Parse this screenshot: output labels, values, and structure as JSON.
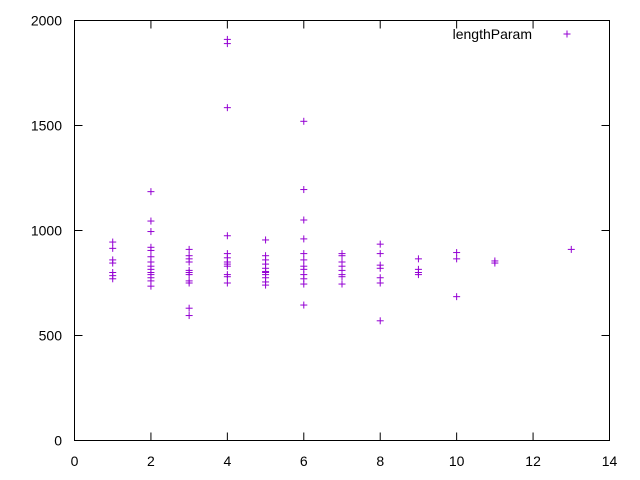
{
  "chart_data": {
    "type": "scatter",
    "title": "",
    "xlabel": "",
    "ylabel": "",
    "xlim": [
      0,
      14
    ],
    "ylim": [
      0,
      2000
    ],
    "xticks": [
      0,
      2,
      4,
      6,
      8,
      10,
      12,
      14
    ],
    "yticks": [
      0,
      500,
      1000,
      1500,
      2000
    ],
    "grid": false,
    "legend_position": "top-right",
    "series": [
      {
        "name": "lengthParam",
        "color": "#9400d3",
        "marker": "plus",
        "points": [
          [
            1,
            945
          ],
          [
            1,
            915
          ],
          [
            1,
            860
          ],
          [
            1,
            845
          ],
          [
            1,
            800
          ],
          [
            1,
            785
          ],
          [
            1,
            770
          ],
          [
            2,
            1185
          ],
          [
            2,
            1045
          ],
          [
            2,
            995
          ],
          [
            2,
            920
          ],
          [
            2,
            905
          ],
          [
            2,
            875
          ],
          [
            2,
            850
          ],
          [
            2,
            830
          ],
          [
            2,
            815
          ],
          [
            2,
            800
          ],
          [
            2,
            790
          ],
          [
            2,
            775
          ],
          [
            2,
            760
          ],
          [
            2,
            735
          ],
          [
            3,
            910
          ],
          [
            3,
            880
          ],
          [
            3,
            865
          ],
          [
            3,
            850
          ],
          [
            3,
            810
          ],
          [
            3,
            800
          ],
          [
            3,
            790
          ],
          [
            3,
            760
          ],
          [
            3,
            750
          ],
          [
            3,
            630
          ],
          [
            3,
            595
          ],
          [
            4,
            1910
          ],
          [
            4,
            1890
          ],
          [
            4,
            1585
          ],
          [
            4,
            975
          ],
          [
            4,
            890
          ],
          [
            4,
            870
          ],
          [
            4,
            850
          ],
          [
            4,
            840
          ],
          [
            4,
            830
          ],
          [
            4,
            790
          ],
          [
            4,
            780
          ],
          [
            4,
            750
          ],
          [
            5,
            955
          ],
          [
            5,
            880
          ],
          [
            5,
            860
          ],
          [
            5,
            840
          ],
          [
            5,
            820
          ],
          [
            5,
            805
          ],
          [
            5,
            800
          ],
          [
            5,
            790
          ],
          [
            5,
            775
          ],
          [
            5,
            755
          ],
          [
            5,
            740
          ],
          [
            6,
            1520
          ],
          [
            6,
            1195
          ],
          [
            6,
            1050
          ],
          [
            6,
            960
          ],
          [
            6,
            890
          ],
          [
            6,
            860
          ],
          [
            6,
            830
          ],
          [
            6,
            815
          ],
          [
            6,
            790
          ],
          [
            6,
            770
          ],
          [
            6,
            745
          ],
          [
            6,
            645
          ],
          [
            7,
            890
          ],
          [
            7,
            880
          ],
          [
            7,
            850
          ],
          [
            7,
            830
          ],
          [
            7,
            810
          ],
          [
            7,
            790
          ],
          [
            7,
            780
          ],
          [
            7,
            745
          ],
          [
            8,
            935
          ],
          [
            8,
            890
          ],
          [
            8,
            835
          ],
          [
            8,
            820
          ],
          [
            8,
            775
          ],
          [
            8,
            750
          ],
          [
            8,
            570
          ],
          [
            9,
            865
          ],
          [
            9,
            815
          ],
          [
            9,
            800
          ],
          [
            9,
            790
          ],
          [
            10,
            895
          ],
          [
            10,
            865
          ],
          [
            10,
            685
          ],
          [
            11,
            855
          ],
          [
            11,
            845
          ],
          [
            13,
            910
          ]
        ]
      }
    ]
  }
}
